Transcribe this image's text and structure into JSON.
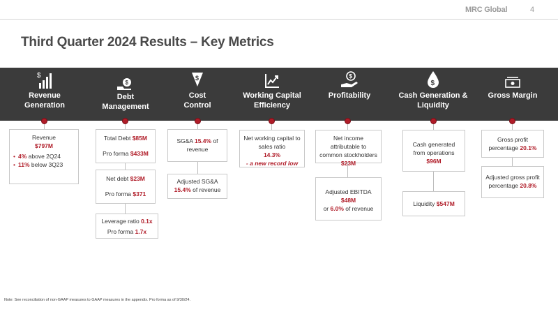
{
  "header": {
    "brand": "MRC Global",
    "page_number": "4"
  },
  "title": "Third Quarter 2024 Results – Key Metrics",
  "columns": [
    {
      "heading_1": "Revenue",
      "heading_2": "Generation",
      "icon": "revenue-bars-icon"
    },
    {
      "heading_1": "Debt",
      "heading_2": "Management",
      "icon": "debt-hand-icon"
    },
    {
      "heading_1": "Cost",
      "heading_2": "Control",
      "icon": "cost-down-icon"
    },
    {
      "heading_1": "Working Capital",
      "heading_2": "Efficiency",
      "icon": "working-capital-chart-icon"
    },
    {
      "heading_1": "Profitability",
      "heading_2": "",
      "icon": "profit-hand-icon"
    },
    {
      "heading_1": "Cash Generation &",
      "heading_2": "Liquidity",
      "icon": "cash-drop-icon"
    },
    {
      "heading_1": "Gross Margin",
      "heading_2": "",
      "icon": "money-bill-icon"
    }
  ],
  "revenue": {
    "label": "Revenue",
    "value": "$797M",
    "b1_value": "4%",
    "b1_text": " above 2Q24",
    "b2_value": "11%",
    "b2_text": " below 3Q23"
  },
  "debt": {
    "total_label": "Total Debt ",
    "total_value": "$85M",
    "pf_label": "Pro forma ",
    "pf_value": "$433M",
    "net_label": "Net debt ",
    "net_value": "$23M",
    "net_pf_label": "Pro forma ",
    "net_pf_value": "$371",
    "lev_label": "Leverage ratio ",
    "lev_value": "0.1x",
    "lev_pf_label": "Pro forma ",
    "lev_pf_value": "1.7x"
  },
  "cost": {
    "sga_label": "SG&A ",
    "sga_value": "15.4%",
    "sga_suffix": " of revenue",
    "adj_label": "Adjusted SG&A",
    "adj_value": "15.4%",
    "adj_suffix": " of revenue"
  },
  "working_capital": {
    "text": "Net working capital to sales ratio",
    "value": "14.3%",
    "record": "- a new record low"
  },
  "profitability": {
    "net_label": "Net income attributable to common stockholders ",
    "net_value": "$23M",
    "ebitda_label": "Adjusted EBITDA ",
    "ebitda_value": "$48M",
    "ebitda_or": "or ",
    "ebitda_pct": "6.0%",
    "ebitda_suffix": " of revenue"
  },
  "cash": {
    "ops_label": "Cash generated from operations",
    "ops_value": "$96M",
    "liq_label": "Liquidity ",
    "liq_value": "$547M"
  },
  "gross_margin": {
    "gp_label": "Gross profit percentage ",
    "gp_value": "20.1%",
    "adj_label": "Adjusted gross profit percentage ",
    "adj_value": "20.8%"
  },
  "footnote": "Note: See reconciliation of non-GAAP measures to GAAP measures in the appendix. Pro forma as of 9/30/24.",
  "colors": {
    "accent": "#b01c28",
    "band": "#3b3b3b",
    "text": "#4a4a4a"
  }
}
